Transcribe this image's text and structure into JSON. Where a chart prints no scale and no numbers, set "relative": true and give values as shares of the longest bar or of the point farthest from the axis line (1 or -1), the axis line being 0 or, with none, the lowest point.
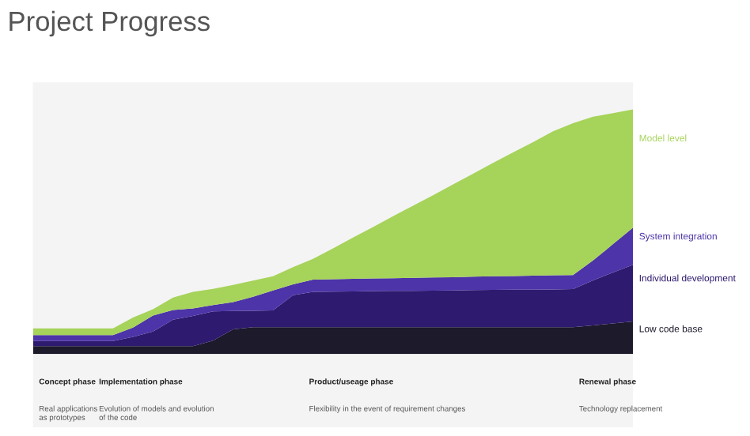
{
  "chart_data": {
    "type": "area",
    "title": "Project Progress",
    "stacked": true,
    "relative": true,
    "categories": [
      null,
      null,
      null,
      null,
      null,
      null,
      null,
      null,
      null,
      null,
      null,
      null,
      null,
      null,
      null,
      null,
      null,
      null,
      null,
      null,
      null,
      null,
      null,
      null,
      null,
      null,
      null,
      null,
      null,
      null,
      null
    ],
    "series": [
      {
        "name": "Low code base",
        "color": "#1c1a2b",
        "values": [
          0.032,
          0.032,
          0.032,
          0.032,
          0.032,
          0.032,
          0.032,
          0.032,
          0.032,
          0.055,
          0.101,
          0.11,
          0.11,
          0.11,
          0.11,
          0.11,
          0.11,
          0.11,
          0.11,
          0.11,
          0.11,
          0.11,
          0.11,
          0.11,
          0.11,
          0.11,
          0.11,
          0.11,
          0.117,
          0.125,
          0.133
        ]
      },
      {
        "name": "Individual development",
        "color": "#2e1a6e",
        "values": [
          0.021,
          0.021,
          0.021,
          0.021,
          0.021,
          0.038,
          0.06,
          0.108,
          0.124,
          0.119,
          0.075,
          0.067,
          0.068,
          0.13,
          0.144,
          0.145,
          0.146,
          0.147,
          0.148,
          0.148,
          0.149,
          0.15,
          0.151,
          0.152,
          0.153,
          0.153,
          0.154,
          0.155,
          0.184,
          0.208,
          0.232
        ]
      },
      {
        "name": "System integration",
        "color": "#4d34a8",
        "values": [
          0.024,
          0.024,
          0.024,
          0.024,
          0.024,
          0.038,
          0.065,
          0.04,
          0.03,
          0.026,
          0.036,
          0.057,
          0.082,
          0.045,
          0.05,
          0.051,
          0.051,
          0.052,
          0.052,
          0.053,
          0.054,
          0.054,
          0.055,
          0.056,
          0.056,
          0.057,
          0.058,
          0.058,
          0.081,
          0.116,
          0.151
        ]
      },
      {
        "name": "Model level",
        "color": "#a6d35a",
        "values": [
          0.028,
          0.028,
          0.028,
          0.028,
          0.028,
          0.041,
          0.026,
          0.051,
          0.068,
          0.066,
          0.07,
          0.066,
          0.058,
          0.07,
          0.085,
          0.126,
          0.169,
          0.21,
          0.253,
          0.295,
          0.336,
          0.379,
          0.421,
          0.463,
          0.505,
          0.546,
          0.588,
          0.62,
          0.588,
          0.535,
          0.484
        ]
      }
    ],
    "annotations": [
      "Concept phase",
      "Real applications as prototypes",
      "Implementation phase",
      "Evolution of models and evolution of the code",
      "Product/useage phase",
      "Flexibility in the event of requirement changes",
      "Renewal phase",
      "Technology replacement"
    ]
  }
}
